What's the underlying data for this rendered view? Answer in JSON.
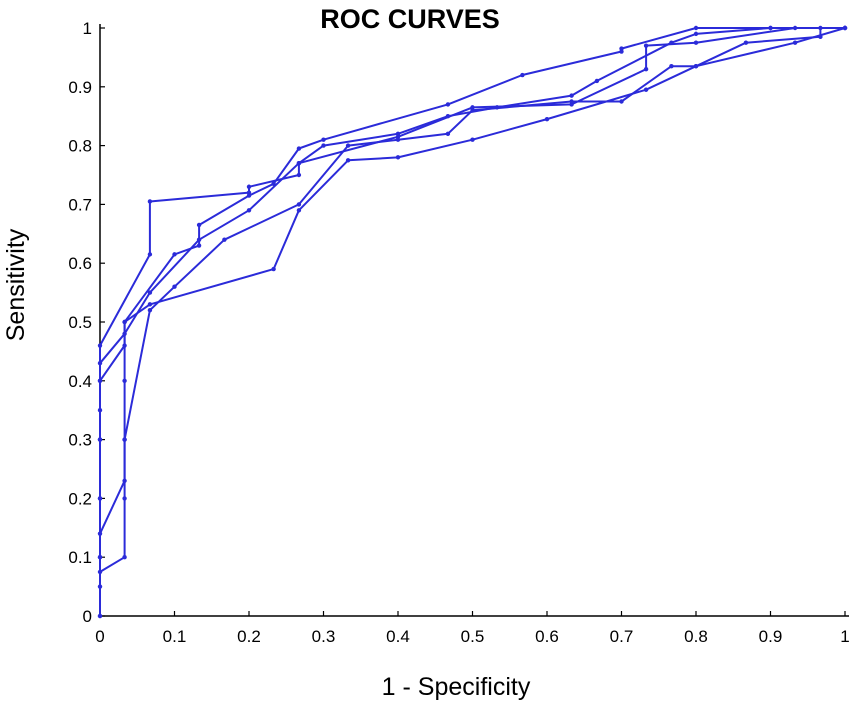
{
  "chart_data": {
    "type": "line",
    "title": "ROC CURVES",
    "xlabel": "1 - Specificity",
    "ylabel": "Sensitivity",
    "xlim": [
      0,
      1
    ],
    "ylim": [
      0,
      1
    ],
    "xticks": [
      "0",
      "0.1",
      "0.2",
      "0.3",
      "0.4",
      "0.5",
      "0.6",
      "0.7",
      "0.8",
      "0.9",
      "1"
    ],
    "yticks": [
      "0",
      "0.1",
      "0.2",
      "0.3",
      "0.4",
      "0.5",
      "0.6",
      "0.7",
      "0.8",
      "0.9",
      "1"
    ],
    "grid": false,
    "legend": "none",
    "color": "#2b2bd9",
    "series": [
      {
        "x": [
          0,
          0,
          0,
          0,
          0,
          0,
          0,
          0.067,
          0.067,
          0.2,
          0.2,
          0.267,
          0.267,
          0.4,
          0.5,
          0.633,
          0.733,
          0.733,
          0.8,
          0.933,
          1
        ],
        "y": [
          0,
          0.05,
          0.1,
          0.2,
          0.3,
          0.4,
          0.46,
          0.615,
          0.705,
          0.72,
          0.73,
          0.75,
          0.77,
          0.815,
          0.865,
          0.87,
          0.93,
          0.97,
          0.975,
          1,
          1
        ]
      },
      {
        "x": [
          0,
          0,
          0,
          0,
          0,
          0.033,
          0.033,
          0.1,
          0.133,
          0.133,
          0.2,
          0.233,
          0.267,
          0.3,
          0.467,
          0.567,
          0.7,
          0.7,
          0.8,
          0.9,
          1
        ],
        "y": [
          0,
          0.1,
          0.2,
          0.3,
          0.4,
          0.46,
          0.5,
          0.615,
          0.63,
          0.665,
          0.715,
          0.735,
          0.795,
          0.81,
          0.87,
          0.92,
          0.96,
          0.965,
          1,
          1,
          1
        ]
      },
      {
        "x": [
          0,
          0.033,
          0.033,
          0.033,
          0.067,
          0.1,
          0.167,
          0.267,
          0.333,
          0.4,
          0.467,
          0.5,
          0.633,
          0.7,
          0.767,
          0.8,
          0.867,
          0.967,
          0.967
        ],
        "y": [
          0.075,
          0.1,
          0.2,
          0.3,
          0.52,
          0.56,
          0.64,
          0.7,
          0.8,
          0.81,
          0.82,
          0.86,
          0.875,
          0.875,
          0.935,
          0.935,
          0.975,
          0.985,
          1
        ]
      },
      {
        "x": [
          0,
          0.033,
          0.033,
          0.033,
          0.033,
          0.067,
          0.233,
          0.267,
          0.333,
          0.4,
          0.5,
          0.6,
          0.733,
          0.8,
          0.933,
          1
        ],
        "y": [
          0.14,
          0.23,
          0.3,
          0.4,
          0.5,
          0.53,
          0.59,
          0.69,
          0.775,
          0.78,
          0.81,
          0.845,
          0.895,
          0.935,
          0.975,
          1
        ]
      },
      {
        "x": [
          0,
          0,
          0.033,
          0.067,
          0.133,
          0.2,
          0.267,
          0.3,
          0.4,
          0.467,
          0.533,
          0.633,
          0.667,
          0.767,
          0.8,
          0.9,
          1
        ],
        "y": [
          0.35,
          0.43,
          0.48,
          0.55,
          0.64,
          0.69,
          0.77,
          0.8,
          0.82,
          0.85,
          0.865,
          0.885,
          0.91,
          0.975,
          0.99,
          1,
          1
        ]
      }
    ]
  }
}
